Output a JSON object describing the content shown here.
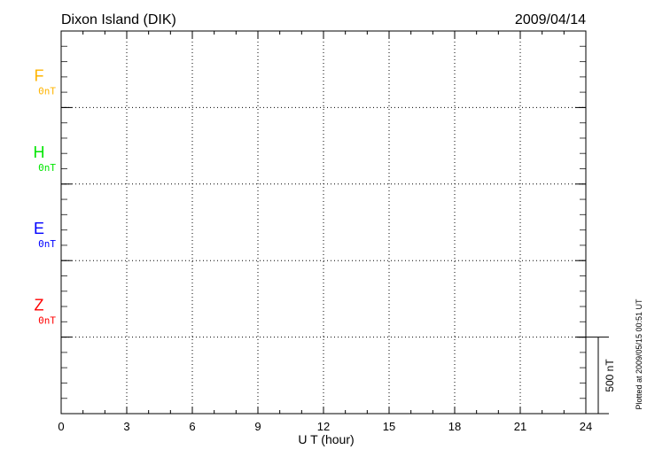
{
  "chart_data": {
    "type": "line",
    "title": "Dixon Island (DIK)",
    "date": "2009/04/14",
    "xlabel": "U T (hour)",
    "xlim": [
      0,
      24
    ],
    "xticks": [
      "0",
      "3",
      "6",
      "9",
      "12",
      "15",
      "18",
      "21",
      "24"
    ],
    "grid": true,
    "components": [
      {
        "name": "F",
        "baseline": "0nT",
        "color": "#ffb400"
      },
      {
        "name": "H",
        "baseline": "0nT",
        "color": "#00e600"
      },
      {
        "name": "E",
        "baseline": "0nT",
        "color": "#0000ff"
      },
      {
        "name": "Z",
        "baseline": "0nT",
        "color": "#ff0000"
      }
    ],
    "series": [],
    "scale_bar": "500 nT",
    "footnote": "Plotted at 2009/05/15 00:51 UT"
  }
}
